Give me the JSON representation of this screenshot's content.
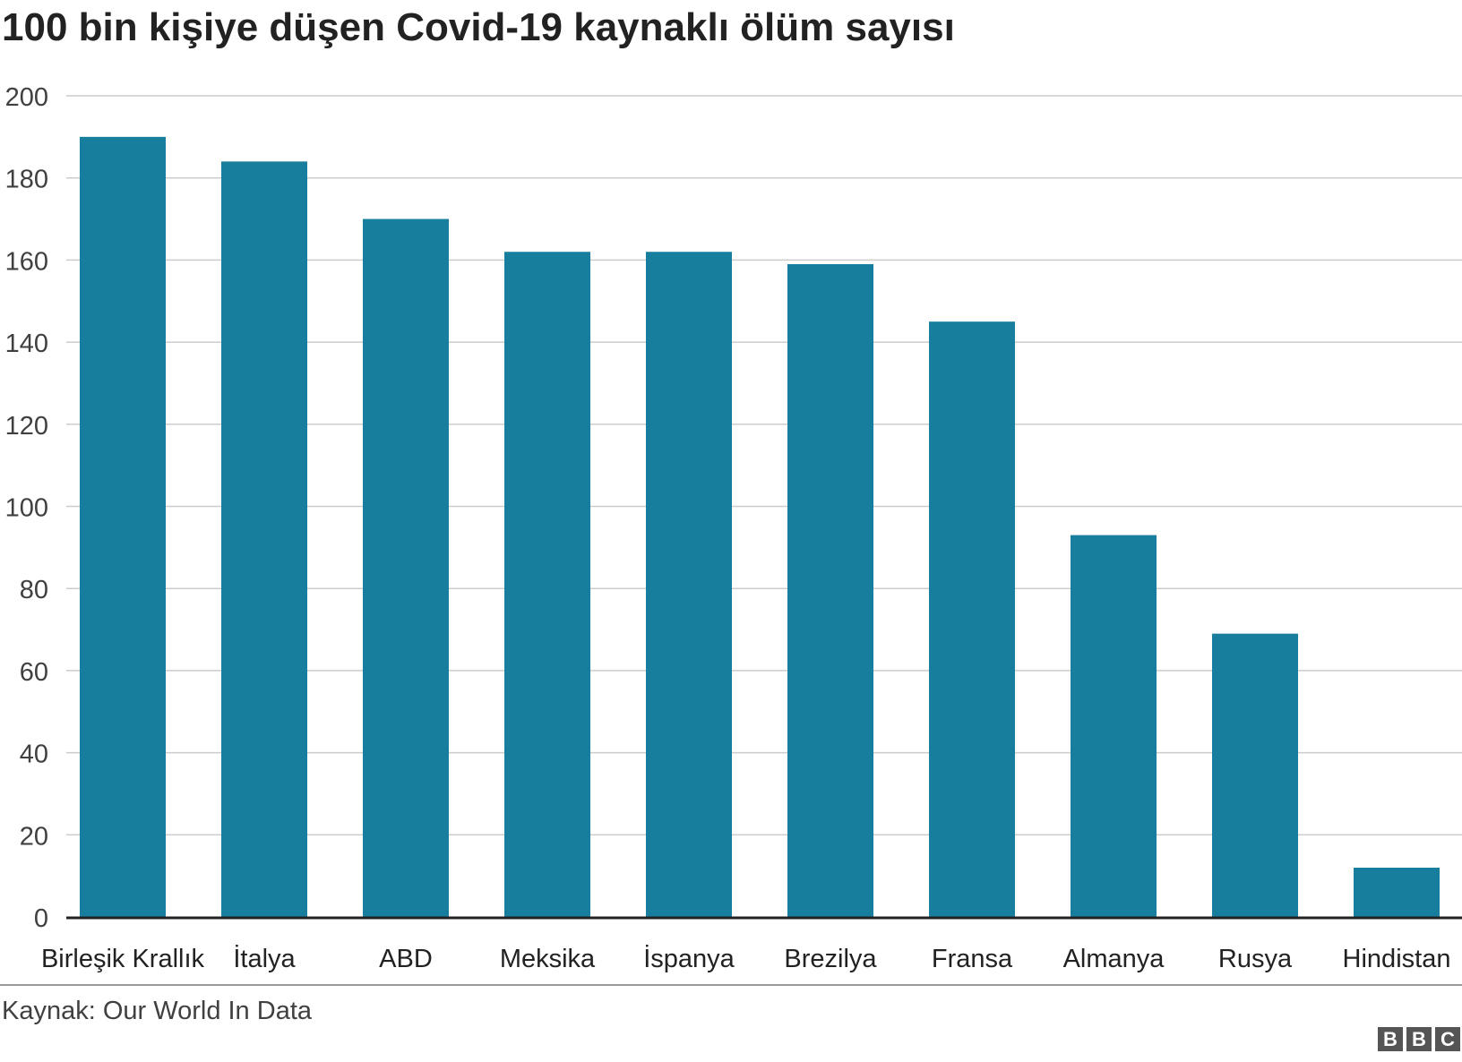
{
  "title": "100 bin kişiye düşen Covid-19 kaynaklı ölüm sayısı",
  "source": "Kaynak: Our World In Data",
  "logo": [
    "B",
    "B",
    "C"
  ],
  "colors": {
    "bar": "#177e9e",
    "grid": "#cccccc",
    "axis": "#222222"
  },
  "chart_data": {
    "type": "bar",
    "title": "100 bin kişiye düşen Covid-19 kaynaklı ölüm sayısı",
    "xlabel": "",
    "ylabel": "",
    "categories": [
      "Birleşik Krallık",
      "İtalya",
      "ABD",
      "Meksika",
      "İspanya",
      "Brezilya",
      "Fransa",
      "Almanya",
      "Rusya",
      "Hindistan"
    ],
    "values": [
      190,
      184,
      170,
      162,
      162,
      159,
      145,
      93,
      69,
      12
    ],
    "ylim": [
      0,
      200
    ],
    "yticks": [
      0,
      20,
      40,
      60,
      80,
      100,
      120,
      140,
      160,
      180,
      200
    ],
    "grid": true,
    "legend": "none"
  }
}
